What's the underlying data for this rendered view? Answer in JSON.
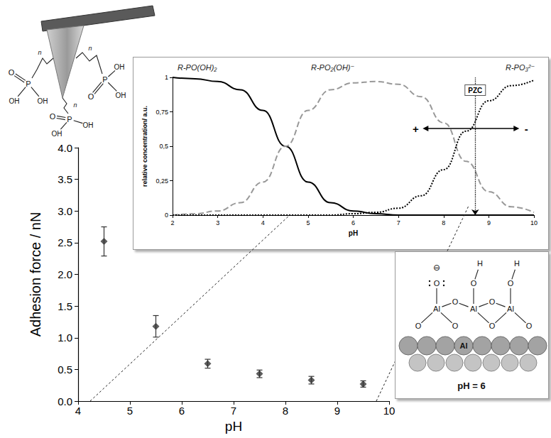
{
  "chart_data": [
    {
      "type": "scatter",
      "x": [
        4.5,
        5.5,
        6.5,
        7.5,
        8.5,
        9.5
      ],
      "values": [
        2.52,
        1.18,
        0.59,
        0.43,
        0.33,
        0.27
      ],
      "errors": [
        0.23,
        0.17,
        0.07,
        0.06,
        0.06,
        0.05
      ],
      "color": "#333333",
      "marker": "diamond",
      "x_label": "pH",
      "y_label": "Adhesion force / nN",
      "xlim": [
        4,
        10
      ],
      "xticks": [
        4,
        5,
        6,
        7,
        8,
        9,
        10
      ],
      "ylim": [
        0,
        4
      ],
      "yticks": [
        {
          "value": 0,
          "label": "0.0"
        },
        {
          "value": 0.5,
          "label": "0.5"
        },
        {
          "value": 1,
          "label": "1.0"
        },
        {
          "value": 1.5,
          "label": "1.5"
        },
        {
          "value": 2,
          "label": "2.0"
        },
        {
          "value": 2.5,
          "label": "2.5"
        },
        {
          "value": 3,
          "label": "3.0"
        },
        {
          "value": 3.5,
          "label": "3.5"
        },
        {
          "value": 4,
          "label": "4.0"
        }
      ],
      "grid": false
    },
    {
      "type": "line",
      "x": [
        2,
        2.5,
        3,
        3.5,
        4,
        4.5,
        5,
        5.5,
        6,
        6.5,
        7,
        7.5,
        8,
        8.5,
        9,
        9.5,
        10
      ],
      "series": [
        {
          "name": "R-PO(OH)₂",
          "color": "#000000",
          "line_style": "solid",
          "values": [
            1,
            0.99,
            0.97,
            0.91,
            0.76,
            0.5,
            0.24,
            0.09,
            0.03,
            0.01,
            0,
            0,
            0,
            0,
            0,
            0,
            0
          ]
        },
        {
          "name": "R-PO₂(OH)⁻",
          "color": "#999999",
          "line_style": "dashed",
          "values": [
            0,
            0.01,
            0.03,
            0.09,
            0.24,
            0.5,
            0.76,
            0.91,
            0.96,
            0.97,
            0.95,
            0.86,
            0.67,
            0.39,
            0.17,
            0.06,
            0.02
          ]
        },
        {
          "name": "R-PO₃²⁻",
          "color": "#000000",
          "line_style": "dotted",
          "values": [
            0,
            0,
            0,
            0,
            0,
            0,
            0,
            0,
            0.01,
            0.02,
            0.05,
            0.14,
            0.33,
            0.61,
            0.83,
            0.94,
            0.98
          ]
        }
      ],
      "x_label": "pH",
      "y_label": "relative concentration/ a.u.",
      "xlim": [
        2,
        10
      ],
      "xticks": [
        2,
        3,
        4,
        5,
        6,
        7,
        8,
        9,
        10
      ],
      "ylim": [
        0,
        1
      ],
      "yticks": [
        0,
        {
          "value": 0.25,
          "label": "0,25"
        },
        {
          "value": 0.5,
          "label": "0,5"
        },
        {
          "value": 0.75,
          "label": "0,75"
        },
        1
      ],
      "grid": false,
      "annotations": {
        "pzc_label": "PZC",
        "pzc_x": 8.7,
        "positive": "+",
        "negative": "-"
      }
    }
  ],
  "diagrams": {
    "tip": {
      "phosphorus": "P",
      "oxygen": "O",
      "hydroxyl": "OH",
      "repeat": "n"
    },
    "surface": {
      "metal": "Al",
      "oxygen": "O",
      "hydrogen": "H",
      "charge": "⊖",
      "caption": "pH = 6"
    }
  }
}
